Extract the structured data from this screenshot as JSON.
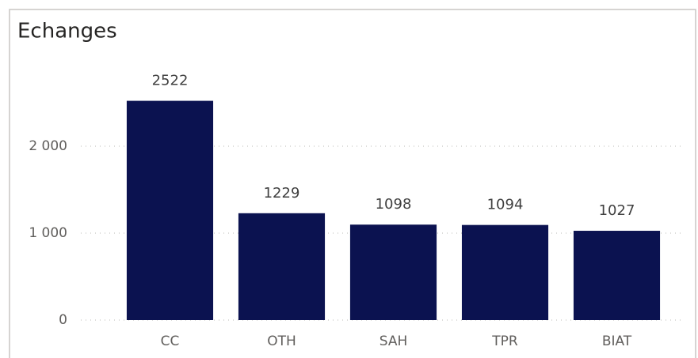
{
  "chart_data": {
    "type": "bar",
    "title": "Echanges",
    "categories": [
      "CC",
      "OTH",
      "SAH",
      "TPR",
      "BIAT"
    ],
    "values": [
      2522,
      1229,
      1098,
      1094,
      1027
    ],
    "color": "#0b1250",
    "ylim": [
      0,
      2800
    ],
    "yticks": [
      0,
      {
        "value": 1000,
        "label": "1 000"
      },
      {
        "value": 2000,
        "label": "2 000"
      }
    ],
    "grid": true,
    "data_labels": true
  }
}
